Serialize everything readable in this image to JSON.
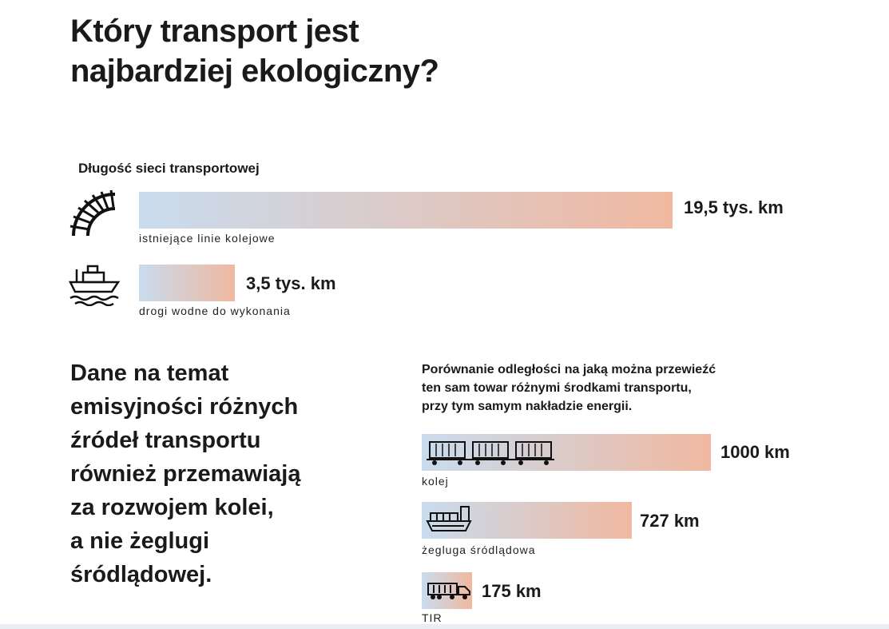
{
  "title_line1": "Który transport jest",
  "title_line2": "najbardziej ekologiczny?",
  "chart_data": [
    {
      "type": "bar",
      "title": "Długość sieci transportowej",
      "unit": "tys. km",
      "categories": [
        "istniejące linie kolejowe",
        "drogi wodne do wykonania"
      ],
      "values": [
        19.5,
        3.5
      ],
      "value_labels": [
        "19,5 tys. km",
        "3,5 tys. km"
      ],
      "icons": [
        "railway-track-icon",
        "ship-icon"
      ]
    },
    {
      "type": "bar",
      "title_lines": [
        "Porównanie odległości na jaką można przewieźć",
        "ten sam towar różnymi środkami transportu,",
        "przy tym samym nakładzie energii."
      ],
      "unit": "km",
      "categories": [
        "kolej",
        "żegluga śródlądowa",
        "TIR"
      ],
      "values": [
        1000,
        727,
        175
      ],
      "value_labels": [
        "1000 km",
        "727 km",
        "175 km"
      ],
      "icons": [
        "freight-train-icon",
        "barge-icon",
        "truck-icon"
      ]
    }
  ],
  "body_text_lines": [
    "Dane na temat",
    "emisyjności różnych",
    "źródeł transportu",
    "również przemawiają",
    "za rozwojem kolei,",
    "a nie żeglugi",
    "śródlądowej."
  ],
  "colors": {
    "bar_start": "#c8dcee",
    "bar_end": "#f0b8a0",
    "text": "#1a1a1a"
  }
}
